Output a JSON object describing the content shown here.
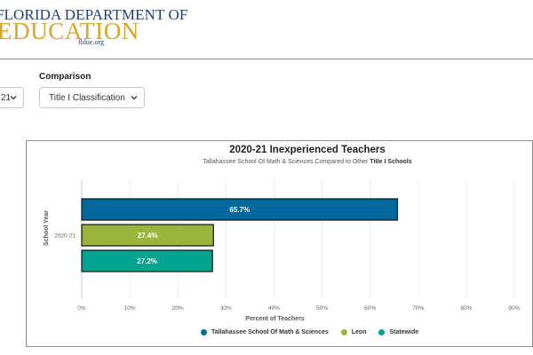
{
  "logo": {
    "line1": "FLORIDA DEPARTMENT OF",
    "line2": "EDUCATION",
    "line3": "fldoe.org"
  },
  "filters": {
    "year_value": "21",
    "comparison_label": "Comparison",
    "comparison_value": "Title I Classification"
  },
  "chart_data": {
    "type": "bar",
    "orientation": "horizontal",
    "title": "2020-21 Inexperienced Teachers",
    "subtitle_prefix": "Tallahassee School Of Math & Sciences Compared to Other",
    "subtitle_bold": "Title I Schools",
    "categories": [
      "2020-21"
    ],
    "series": [
      {
        "name": "Tallahassee School Of Math & Sciences",
        "values": [
          65.7
        ],
        "label": "65.7%",
        "color": "#00689d"
      },
      {
        "name": "Leon",
        "values": [
          27.4
        ],
        "label": "27.4%",
        "color": "#9bb53c"
      },
      {
        "name": "Statewide",
        "values": [
          27.2
        ],
        "label": "27.2%",
        "color": "#00a48f"
      }
    ],
    "xlabel": "Percent of Teachers",
    "ylabel": "School Year",
    "xlim": [
      0,
      90
    ],
    "xticks": [
      {
        "value": 0,
        "label": "0%"
      },
      {
        "value": 10,
        "label": "10%"
      },
      {
        "value": 20,
        "label": "20%"
      },
      {
        "value": 30,
        "label": "30%"
      },
      {
        "value": 40,
        "label": "40%"
      },
      {
        "value": 50,
        "label": "50%"
      },
      {
        "value": 60,
        "label": "60%"
      },
      {
        "value": 70,
        "label": "70%"
      },
      {
        "value": 80,
        "label": "80%"
      },
      {
        "value": 90,
        "label": "90%"
      }
    ],
    "grid": true,
    "legend_position": "bottom"
  }
}
